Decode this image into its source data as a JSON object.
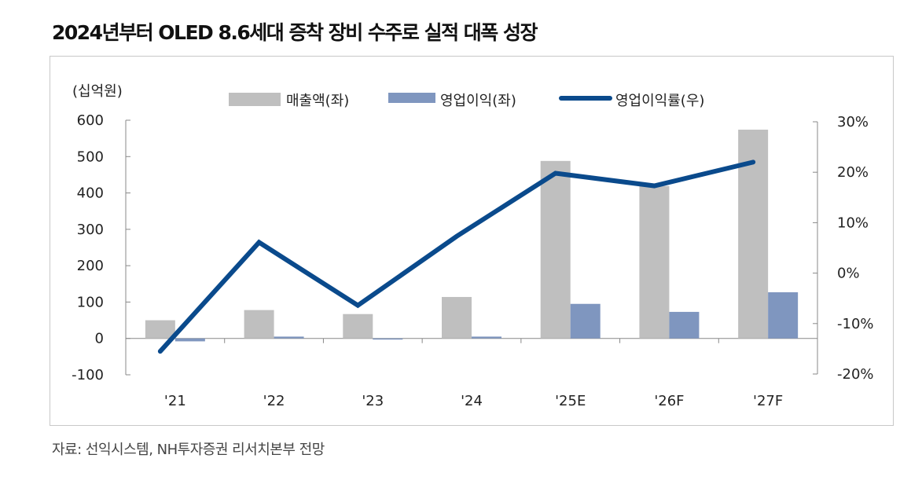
{
  "title": "2024년부터 OLED 8.6세대 증착 장비 수주로 실적 대폭 성장",
  "source": "자료: 선익시스템, NH투자증권 리서치본부 전망",
  "chart_data": {
    "type": "bar",
    "title": "2024년부터 OLED 8.6세대 증착 장비 수주로 실적 대폭 성장",
    "ylabel": "(십억원)",
    "categories": [
      "'21",
      "'22",
      "'23",
      "'24",
      "'25E",
      "'26F",
      "'27F"
    ],
    "ylim": [
      -100,
      600
    ],
    "yticks": [
      "600",
      "500",
      "400",
      "300",
      "200",
      "100",
      "0",
      "-100"
    ],
    "ytick_values": [
      600,
      500,
      400,
      300,
      200,
      100,
      0,
      -100
    ],
    "y2lim": [
      -20,
      30
    ],
    "y2ticks": [
      "30%",
      "20%",
      "10%",
      "0%",
      "-10%",
      "-20%"
    ],
    "y2tick_values": [
      30,
      20,
      10,
      0,
      -10,
      -20
    ],
    "legend_position": "top",
    "series": [
      {
        "name": "매출액(좌)",
        "type": "bar",
        "axis": "left",
        "color": "#bfbfbf",
        "values": [
          50,
          78,
          67,
          114,
          488,
          419,
          574
        ]
      },
      {
        "name": "영업이익(좌)",
        "type": "bar",
        "axis": "left",
        "color": "#7f96bf",
        "values": [
          -8,
          5,
          -2,
          5,
          95,
          73,
          127
        ]
      },
      {
        "name": "영업이익률(우)",
        "type": "line",
        "axis": "right",
        "color": "#0a4a8c",
        "values": [
          -15.5,
          6.1,
          -6.4,
          7.3,
          19.8,
          17.3,
          22.0
        ]
      }
    ]
  }
}
